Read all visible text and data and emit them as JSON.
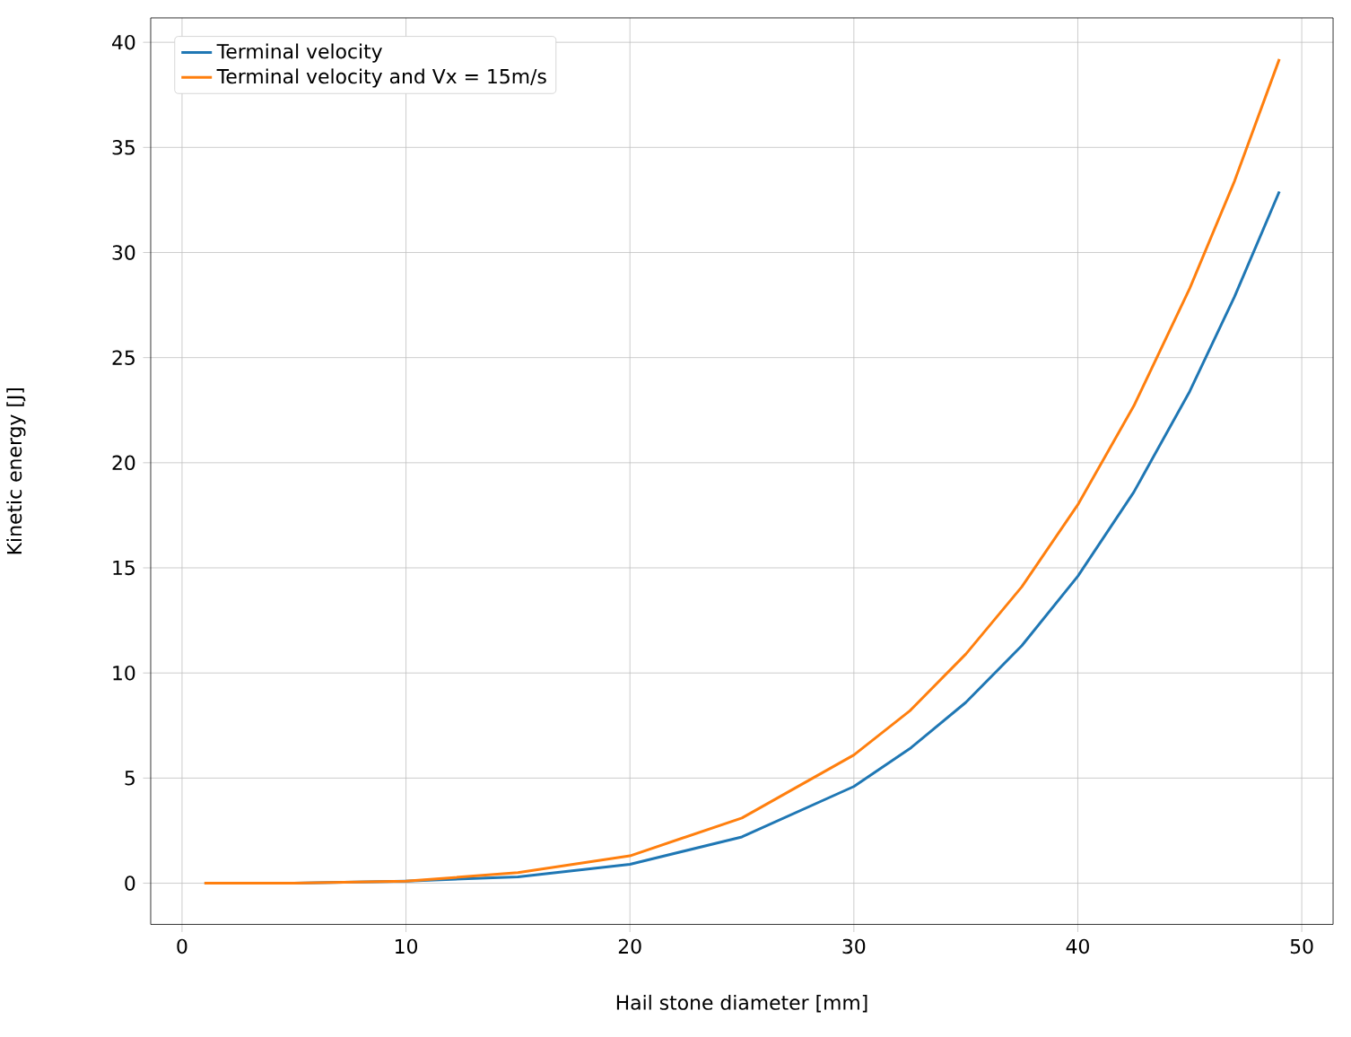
{
  "chart_data": {
    "type": "line",
    "xlabel": "Hail stone diameter [mm]",
    "ylabel": "Kinetic energy [J]",
    "x": [
      1,
      5,
      10,
      15,
      20,
      25,
      30,
      32.5,
      35,
      37.5,
      40,
      42.5,
      45,
      47,
      49
    ],
    "series": [
      {
        "name": "Terminal velocity",
        "color": "#1f77b4",
        "values": [
          0,
          0,
          0.1,
          0.3,
          0.9,
          2.2,
          4.6,
          6.4,
          8.6,
          11.3,
          14.6,
          18.6,
          23.4,
          27.9,
          32.9
        ]
      },
      {
        "name": "Terminal velocity and Vx = 15m/s",
        "color": "#ff7f0e",
        "values": [
          0,
          0,
          0.1,
          0.5,
          1.3,
          3.1,
          6.1,
          8.2,
          10.9,
          14.1,
          18,
          22.7,
          28.3,
          33.4,
          39.2
        ]
      }
    ],
    "xlim": [
      -1.4,
      51.4
    ],
    "ylim": [
      -1.96,
      41.16
    ],
    "xticks": [
      0,
      10,
      20,
      30,
      40,
      50
    ],
    "yticks": [
      0,
      5,
      10,
      15,
      20,
      25,
      30,
      35,
      40
    ],
    "grid": true,
    "legend": "top left"
  }
}
